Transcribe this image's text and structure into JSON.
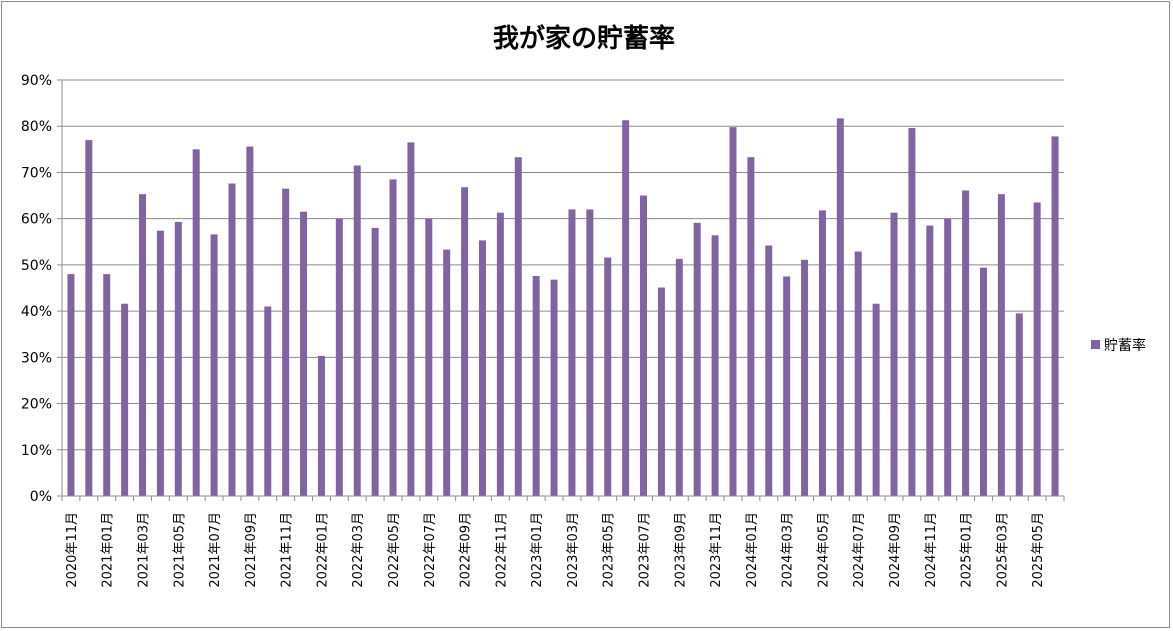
{
  "chart_data": {
    "type": "bar",
    "title": "我が家の貯蓄率",
    "xlabel": "",
    "ylabel": "",
    "ylim": [
      0,
      90
    ],
    "ytick_values": [
      0,
      10,
      20,
      30,
      40,
      50,
      60,
      70,
      80,
      90
    ],
    "yticks": [
      "0%",
      "10%",
      "20%",
      "30%",
      "40%",
      "50%",
      "60%",
      "70%",
      "80%",
      "90%"
    ],
    "grid": true,
    "legend_position": "right",
    "bar_color": "#8064a2",
    "categories": [
      "2020年11月",
      "2020年12月",
      "2021年01月",
      "2021年02月",
      "2021年03月",
      "2021年04月",
      "2021年05月",
      "2021年06月",
      "2021年07月",
      "2021年08月",
      "2021年09月",
      "2021年10月",
      "2021年11月",
      "2021年12月",
      "2022年01月",
      "2022年02月",
      "2022年03月",
      "2022年04月",
      "2022年05月",
      "2022年06月",
      "2022年07月",
      "2022年08月",
      "2022年09月",
      "2022年10月",
      "2022年11月",
      "2022年12月",
      "2023年01月",
      "2023年02月",
      "2023年03月",
      "2023年04月",
      "2023年05月",
      "2023年06月",
      "2023年07月",
      "2023年08月",
      "2023年09月",
      "2023年10月",
      "2023年11月",
      "2023年12月",
      "2024年01月",
      "2024年02月",
      "2024年03月",
      "2024年04月",
      "2024年05月",
      "2024年06月",
      "2024年07月",
      "2024年08月",
      "2024年09月",
      "2024年10月",
      "2024年11月",
      "2024年12月",
      "2025年01月",
      "2025年02月",
      "2025年03月",
      "2025年04月",
      "2025年05月",
      "2025年06月"
    ],
    "visible_tick_labels": [
      "2020年11月",
      "2021年01月",
      "2021年03月",
      "2021年05月",
      "2021年07月",
      "2021年09月",
      "2021年11月",
      "2022年01月",
      "2022年03月",
      "2022年05月",
      "2022年07月",
      "2022年09月",
      "2022年11月",
      "2023年01月",
      "2023年03月",
      "2023年05月",
      "2023年07月",
      "2023年09月",
      "2023年11月",
      "2024年01月",
      "2024年03月",
      "2024年05月",
      "2024年07月",
      "2024年09月",
      "2024年11月",
      "2025年01月",
      "2025年03月",
      "2025年05月"
    ],
    "series": [
      {
        "name": "貯蓄率",
        "values": [
          48,
          77,
          48,
          41.6,
          65.3,
          57.4,
          59.3,
          75,
          56.6,
          67.6,
          75.6,
          41,
          66.5,
          61.5,
          30.3,
          60,
          71.5,
          58,
          68.5,
          76.5,
          60,
          53.3,
          66.8,
          55.3,
          61.3,
          73.3,
          47.6,
          46.8,
          62,
          62,
          51.6,
          81.3,
          65,
          45.1,
          51.3,
          59.1,
          56.4,
          79.8,
          73.3,
          54.2,
          47.5,
          51.1,
          61.8,
          81.7,
          52.9,
          41.6,
          61.3,
          79.6,
          58.5,
          60,
          66.1,
          49.4,
          65.3,
          39.5,
          63.5,
          77.8
        ]
      }
    ]
  }
}
